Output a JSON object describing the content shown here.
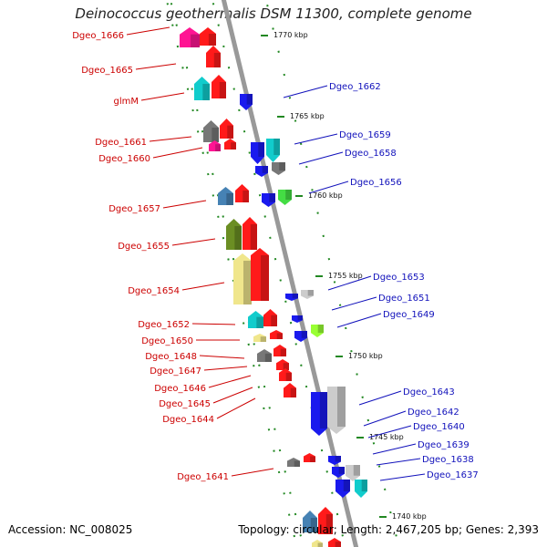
{
  "title": "Deinococcus geothermalis DSM 11300, complete genome",
  "footer": {
    "accession": "Accession: NC_008025",
    "topology": "Topology: circular; Length: 2,467,205 bp; Genes: 2,393"
  },
  "colors": {
    "backbone": "#999999",
    "tick": "#228822",
    "label_left": "#cc0000",
    "label_right": "#1111bb",
    "gene_red": "#ff1a1a",
    "gene_pink": "#ff1493",
    "gene_blue": "#1a1aee",
    "gene_cyan": "#11cccc",
    "gene_gray": "#777777",
    "gene_lightgray": "#cccccc",
    "gene_steel": "#4682b4",
    "gene_olive": "#6b8e23",
    "gene_khaki": "#f0e68c",
    "gene_green": "#44dd44",
    "gene_lime": "#99ff33"
  },
  "scale_labels": [
    "1770 kbp",
    "1765 kbp",
    "1760 kbp",
    "1755 kbp",
    "1750 kbp",
    "1745 kbp",
    "1740 kbp"
  ],
  "left_labels": [
    "Dgeo_1666",
    "Dgeo_1665",
    "glmM",
    "Dgeo_1661",
    "Dgeo_1660",
    "Dgeo_1657",
    "Dgeo_1655",
    "Dgeo_1654",
    "Dgeo_1652",
    "Dgeo_1650",
    "Dgeo_1648",
    "Dgeo_1647",
    "Dgeo_1646",
    "Dgeo_1645",
    "Dgeo_1644",
    "Dgeo_1641"
  ],
  "right_labels": [
    "Dgeo_1662",
    "Dgeo_1659",
    "Dgeo_1658",
    "Dgeo_1656",
    "Dgeo_1653",
    "Dgeo_1651",
    "Dgeo_1649",
    "Dgeo_1643",
    "Dgeo_1642",
    "Dgeo_1640",
    "Dgeo_1639",
    "Dgeo_1638",
    "Dgeo_1637"
  ]
}
